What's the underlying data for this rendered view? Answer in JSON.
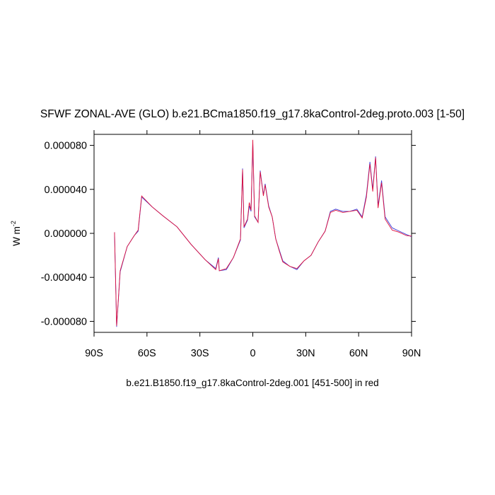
{
  "chart_data": {
    "type": "line",
    "title": "SFWF ZONAL-AVE (GLO) b.e21.BCma1850.f19_g17.8kaControl-2deg.proto.003 [1-50]",
    "subtitle": "b.e21.B1850.f19_g17.8kaControl-2deg.001 [451-500] in red",
    "ylabel": {
      "text": "W m",
      "superscript": "-2"
    },
    "x": [
      -78.4,
      -77.2,
      -75.2,
      -71.2,
      -67.2,
      -65,
      -63,
      -57,
      -51,
      -43,
      -35,
      -27,
      -21,
      -19.5,
      -19,
      -15,
      -11,
      -7,
      -5.8,
      -5,
      -3,
      -2,
      -1,
      0,
      1,
      3,
      4.2,
      6,
      7,
      9,
      11,
      13,
      15,
      17,
      21,
      25,
      29,
      33,
      37,
      41,
      44,
      47,
      51,
      55,
      59,
      62,
      64.4,
      66.4,
      68,
      69.6,
      71,
      73,
      75,
      79,
      83,
      87,
      90
    ],
    "series": [
      {
        "name": "b.e21.BCma1850.f19_g17.8kaControl-2deg.proto.003",
        "color": "#3b3bd6",
        "values": [
          1e-06,
          -8.5e-05,
          -3.5e-05,
          -1.2e-05,
          -2e-06,
          2e-06,
          3.3e-05,
          2.4e-05,
          1.6e-05,
          6e-06,
          -1e-05,
          -2.4e-05,
          -3.2e-05,
          -2.2e-05,
          -3.4e-05,
          -3.3e-05,
          -2.2e-05,
          -6e-06,
          5.9e-05,
          5e-06,
          1.2e-05,
          2.5e-05,
          2e-05,
          8.3e-05,
          1.5e-05,
          1e-05,
          5.7e-05,
          3.5e-05,
          4.5e-05,
          2.5e-05,
          1.5e-05,
          -5e-06,
          -1.5e-05,
          -2.5e-05,
          -3e-05,
          -3.3e-05,
          -2.5e-05,
          -2e-05,
          -8e-06,
          2e-06,
          2e-05,
          2.2e-05,
          2e-05,
          2e-05,
          2.2e-05,
          1.5e-05,
          3.5e-05,
          6.5e-05,
          4e-05,
          7e-05,
          2.5e-05,
          4.8e-05,
          1.5e-05,
          5e-06,
          2e-06,
          -1e-06,
          -3e-06
        ]
      },
      {
        "name": "b.e21.B1850.f19_g17.8kaControl-2deg.001 [451-500]",
        "color": "#e0103c",
        "values": [
          1e-06,
          -8.4e-05,
          -3.4e-05,
          -1.2e-05,
          -2e-06,
          3e-06,
          3.4e-05,
          2.4e-05,
          1.6e-05,
          6e-06,
          -1e-05,
          -2.4e-05,
          -3.3e-05,
          -2.3e-05,
          -3.4e-05,
          -3.2e-05,
          -2.2e-05,
          -5e-06,
          5.8e-05,
          6e-06,
          1.3e-05,
          2.8e-05,
          2.1e-05,
          8.5e-05,
          1.6e-05,
          1e-05,
          5.6e-05,
          3.4e-05,
          4.4e-05,
          2.4e-05,
          1.5e-05,
          -5e-06,
          -1.6e-05,
          -2.6e-05,
          -3e-05,
          -3.2e-05,
          -2.5e-05,
          -2e-05,
          -8e-06,
          2e-06,
          1.9e-05,
          2.1e-05,
          1.9e-05,
          2e-05,
          2.1e-05,
          1.4e-05,
          3.3e-05,
          6.3e-05,
          3.8e-05,
          6.9e-05,
          2.3e-05,
          4.6e-05,
          1.3e-05,
          3e-06,
          1e-06,
          -2e-06,
          -2.5e-06
        ]
      }
    ],
    "xlim": [
      -90,
      90
    ],
    "xticks": [
      {
        "value": -90,
        "label": "90S"
      },
      {
        "value": -60,
        "label": "60S"
      },
      {
        "value": -30,
        "label": "30S"
      },
      0,
      {
        "value": 30,
        "label": "30N"
      },
      {
        "value": 60,
        "label": "60N"
      },
      {
        "value": 90,
        "label": "90N"
      }
    ],
    "ylim": [
      -9e-05,
      9e-05
    ],
    "yticks": [
      {
        "value": -8e-05,
        "label": "-0.000080"
      },
      {
        "value": -4e-05,
        "label": "-0.000040"
      },
      {
        "value": 0,
        "label": "0.000000"
      },
      {
        "value": 4e-05,
        "label": "0.000040"
      },
      {
        "value": 8e-05,
        "label": "0.000080"
      }
    ]
  }
}
